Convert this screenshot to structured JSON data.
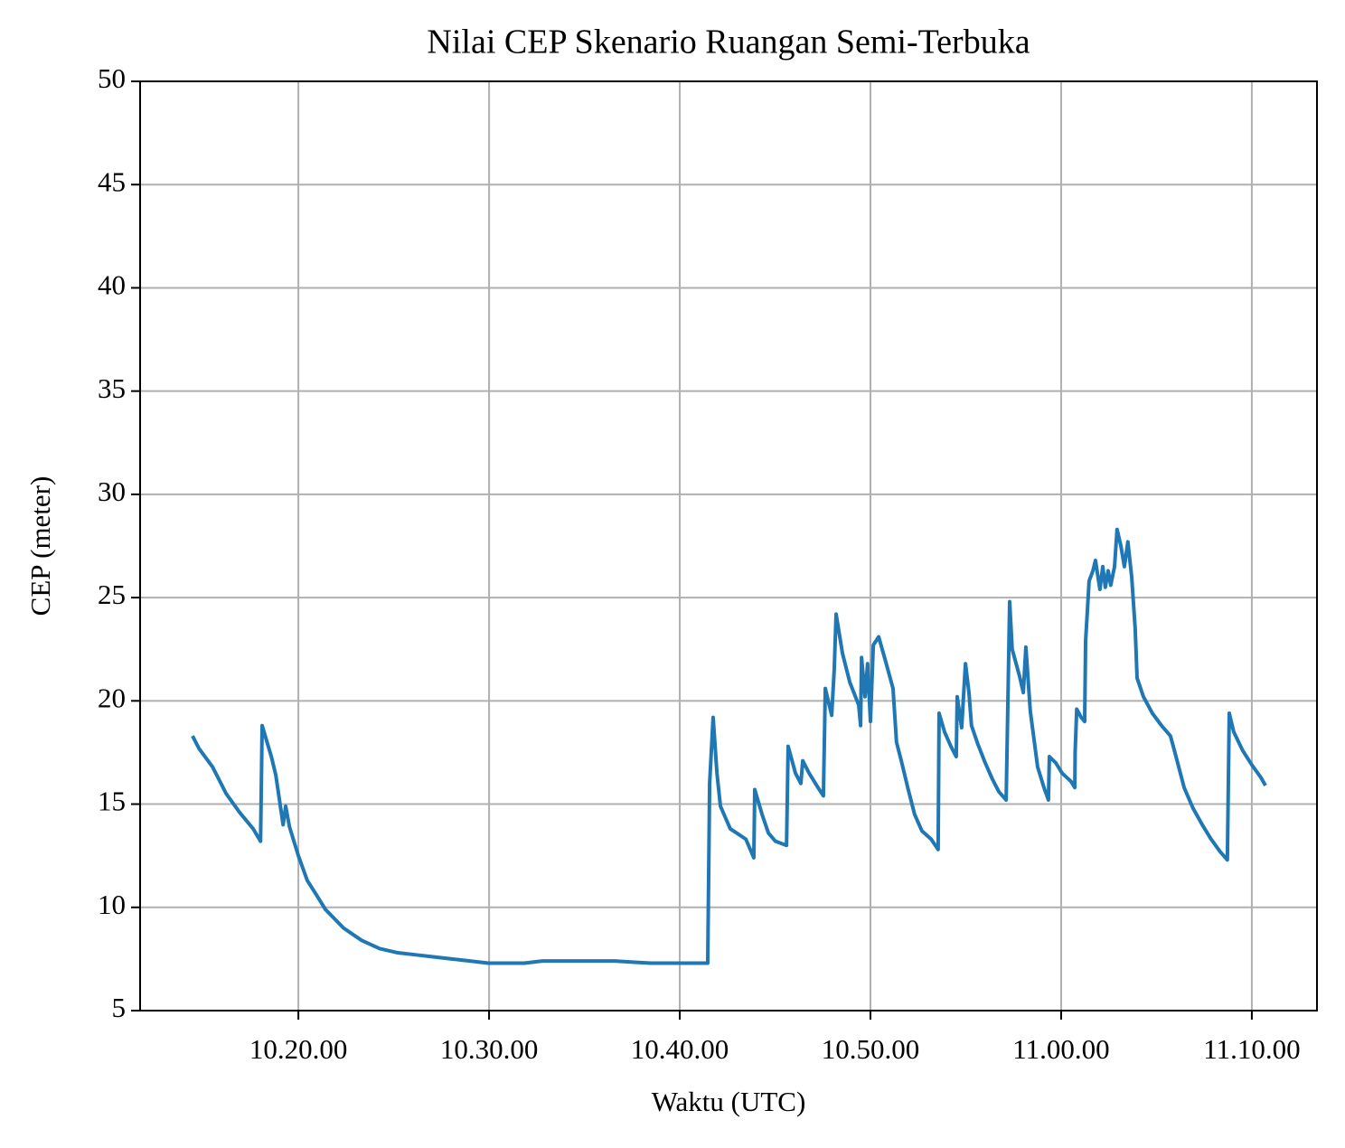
{
  "chart_data": {
    "type": "line",
    "title": "Nilai CEP Skenario Ruangan Semi-Terbuka",
    "x_label": "Waktu (UTC)",
    "y_label": "CEP (meter)",
    "x": [
      "10.14.27",
      "10.14.47",
      "10.15.30",
      "10.16.13",
      "10.16.55",
      "10.17.38",
      "10.18.01",
      "10.18.06",
      "10.18.35",
      "10.18.49",
      "10.19.12",
      "10.19.20",
      "10.19.32",
      "10.20.00",
      "10.20.28",
      "10.20.57",
      "10.21.25",
      "10.22.22",
      "10.23.19",
      "10.24.16",
      "10.25.13",
      "10.26.10",
      "10.27.07",
      "10.28.03",
      "10.29.00",
      "10.29.57",
      "10.30.54",
      "10.31.51",
      "10.32.48",
      "10.33.45",
      "10.34.42",
      "10.35.38",
      "10.36.35",
      "10.37.32",
      "10.38.29",
      "10.40.23",
      "10.41.28",
      "10.41.34",
      "10.41.45",
      "10.41.57",
      "10.42.08",
      "10.42.22",
      "10.42.39",
      "10.42.59",
      "10.43.28",
      "10.43.53",
      "10.43.56",
      "10.44.19",
      "10.44.39",
      "10.45.01",
      "10.45.36",
      "10.45.41",
      "10.46.04",
      "10.46.21",
      "10.46.27",
      "10.46.47",
      "10.47.15",
      "10.47.32",
      "10.47.38",
      "10.47.58",
      "10.48.06",
      "10.48.12",
      "10.48.32",
      "10.48.55",
      "10.49.23",
      "10.49.29",
      "10.49.32",
      "10.49.43",
      "10.49.51",
      "10.50.00",
      "10.50.09",
      "10.50.26",
      "10.50.48",
      "10.51.11",
      "10.51.22",
      "10.51.37",
      "10.51.59",
      "10.52.19",
      "10.52.42",
      "10.53.11",
      "10.53.33",
      "10.53.36",
      "10.53.53",
      "10.54.13",
      "10.54.30",
      "10.54.33",
      "10.54.47",
      "10.54.59",
      "10.55.10",
      "10.55.18",
      "10.55.38",
      "10.56.01",
      "10.56.24",
      "10.56.44",
      "10.57.07",
      "10.57.18",
      "10.57.26",
      "10.57.49",
      "10.58.01",
      "10.58.09",
      "10.58.23",
      "10.58.46",
      "10.59.06",
      "10.59.20",
      "10.59.23",
      "10.59.43",
      "11.00.03",
      "11.00.31",
      "11.00.43",
      "11.00.44",
      "11.00.49",
      "11.01.03",
      "11.01.14",
      "11.01.17",
      "11.01.28",
      "11.01.40",
      "11.01.48",
      "11.02.02",
      "11.02.11",
      "11.02.19",
      "11.02.28",
      "11.02.36",
      "11.02.48",
      "11.02.56",
      "11.03.08",
      "11.03.19",
      "11.03.30",
      "11.03.42",
      "11.03.53",
      "11.03.59",
      "11.04.19",
      "11.04.47",
      "11.05.16",
      "11.05.44",
      "11.05.58",
      "11.06.27",
      "11.06.55",
      "11.07.24",
      "11.07.52",
      "11.08.20",
      "11.08.43",
      "11.08.49",
      "11.09.03",
      "11.09.31",
      "11.10.00",
      "11.10.28",
      "11.10.43"
    ],
    "series": [
      {
        "name": "CEP",
        "color": "#1f77b4",
        "values": [
          18.3,
          17.7,
          16.8,
          15.5,
          14.6,
          13.8,
          13.2,
          18.8,
          17.3,
          16.4,
          14.0,
          14.9,
          13.9,
          12.5,
          11.3,
          10.6,
          9.9,
          9.0,
          8.4,
          8.0,
          7.8,
          7.7,
          7.6,
          7.5,
          7.4,
          7.3,
          7.3,
          7.3,
          7.4,
          7.4,
          7.4,
          7.4,
          7.4,
          7.35,
          7.3,
          7.3,
          7.3,
          16.0,
          19.2,
          16.5,
          14.9,
          14.4,
          13.8,
          13.6,
          13.3,
          12.4,
          15.7,
          14.5,
          13.6,
          13.2,
          13.0,
          17.8,
          16.5,
          16.0,
          17.1,
          16.5,
          15.8,
          15.4,
          20.6,
          19.3,
          21.5,
          24.2,
          22.3,
          20.9,
          19.8,
          18.8,
          22.1,
          20.2,
          21.8,
          19.0,
          22.7,
          23.1,
          21.9,
          20.6,
          18.0,
          17.1,
          15.7,
          14.5,
          13.7,
          13.3,
          12.8,
          19.4,
          18.5,
          17.8,
          17.3,
          20.2,
          18.7,
          21.8,
          20.4,
          18.8,
          17.9,
          17.0,
          16.2,
          15.6,
          15.2,
          24.8,
          22.5,
          21.2,
          20.4,
          22.6,
          19.5,
          16.8,
          15.8,
          15.2,
          17.3,
          17.0,
          16.5,
          16.1,
          15.8,
          17.5,
          19.6,
          19.2,
          19.0,
          22.9,
          25.8,
          26.3,
          26.8,
          25.4,
          26.5,
          25.5,
          26.3,
          25.6,
          26.5,
          28.3,
          27.5,
          26.5,
          27.7,
          26.0,
          23.5,
          21.1,
          20.2,
          19.4,
          18.8,
          18.3,
          17.5,
          15.8,
          14.8,
          14.0,
          13.3,
          12.7,
          12.3,
          19.4,
          18.5,
          17.6,
          16.9,
          16.3,
          15.9
        ]
      }
    ],
    "xlim": [
      "10.11.42",
      "11.13.25"
    ],
    "xticks": [
      "10.20.00",
      "10.30.00",
      "10.40.00",
      "10.50.00",
      "11.00.00",
      "11.10.00"
    ],
    "ylim": [
      5,
      50
    ],
    "yticks": [
      5,
      10,
      15,
      20,
      25,
      30,
      35,
      40,
      45,
      50
    ],
    "grid": true
  }
}
